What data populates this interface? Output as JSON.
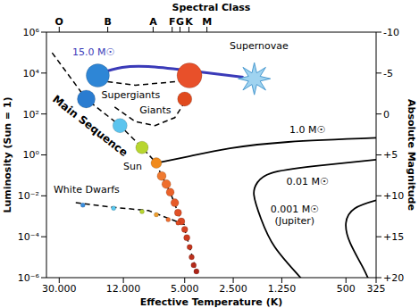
{
  "chart_data": {
    "type": "scatter",
    "x_label": "Effective Temperature (K)",
    "x2_label": "Spectral Class",
    "y_label": "Luminosity (Sun = 1)",
    "y2_label": "Absolute Magnitude",
    "log": true,
    "grid": false,
    "xlim": [
      36000,
      325
    ],
    "xticks": [
      {
        "value": 30000,
        "label": "30.000"
      },
      {
        "value": 12000,
        "label": "12.000"
      },
      {
        "value": 5000,
        "label": "5.000"
      },
      {
        "value": 2500,
        "label": "2.500"
      },
      {
        "value": 1250,
        "label": "1.250"
      },
      500,
      325
    ],
    "x2ticks": [
      {
        "value": 30000,
        "label": "O"
      },
      {
        "value": 15000,
        "label": "B"
      },
      {
        "value": 7850,
        "label": "A"
      },
      {
        "value": 5980,
        "label": "F"
      },
      {
        "value": 5350,
        "label": "G"
      },
      {
        "value": 4710,
        "label": "K"
      },
      {
        "value": 3640,
        "label": "M"
      }
    ],
    "ylim": [
      1e-06,
      1000000
    ],
    "yticks": [
      {
        "value": 1000000,
        "label": "10⁶"
      },
      {
        "value": 10000,
        "label": "10⁴"
      },
      {
        "value": 100,
        "label": "10²"
      },
      {
        "value": 1,
        "label": "10⁰"
      },
      {
        "value": 0.01,
        "label": "10⁻²"
      },
      {
        "value": 0.0001,
        "label": "10⁻⁴"
      },
      {
        "value": 1e-06,
        "label": "10⁻⁶"
      }
    ],
    "y2lim": [
      20,
      -10
    ],
    "y2ticks": [
      -10,
      -5,
      0,
      {
        "value": 5,
        "label": "+5"
      },
      {
        "value": 10,
        "label": "+10"
      },
      {
        "value": 15,
        "label": "+15"
      },
      {
        "value": 20,
        "label": "+20"
      }
    ],
    "series": [
      {
        "type": "line",
        "line_style": "dashed",
        "color": "#000000",
        "x": [
          33200,
          20400,
          12600,
          9200,
          7500,
          6950,
          6150,
          5500,
          5000,
          4660,
          4230
        ],
        "values": [
          98000,
          540,
          27,
          2.3,
          0.4,
          0.093,
          0.015,
          0.0015,
          0.00023,
          3.1e-05,
          2e-06
        ]
      },
      {
        "type": "line",
        "line_style": "dashed",
        "color": "#000000",
        "x": [
          13600,
          10100,
          7640,
          5760,
          4850
        ],
        "values": [
          218,
          42,
          27,
          66,
          540
        ]
      },
      {
        "type": "line",
        "line_style": "dashed",
        "color": "#000000",
        "x": [
          19400,
          10100,
          5240
        ],
        "values": [
          4800,
          2560,
          4000
        ]
      },
      {
        "type": "line",
        "line_style": "dashed",
        "color": "#000000",
        "x": [
          23700,
          13600,
          8400,
          5000
        ],
        "values": [
          0.0046,
          0.0027,
          0.0019,
          0.00039
        ]
      },
      {
        "type": "line",
        "line_style": "solid",
        "color": "#3a3ab8",
        "x": [
          17300,
          12200,
          8400,
          5000,
          2160
        ],
        "values": [
          9100,
          19000,
          21000,
          14000,
          6300
        ]
      },
      {
        "type": "line",
        "line_style": "solid",
        "color": "#000000",
        "x": [
          7500,
          4760,
          2620,
          1140,
          325
        ],
        "values": [
          0.4,
          0.83,
          2.1,
          4.3,
          6.8
        ]
      },
      {
        "type": "line",
        "line_style": "solid",
        "color": "#000000",
        "x": [
          325,
          791,
          1450,
          1770,
          1860,
          1680,
          1380,
          950
        ],
        "values": [
          0.58,
          0.28,
          0.13,
          0.045,
          0.011,
          0.00074,
          3.1e-05,
          9.5e-07
        ]
      },
      {
        "type": "line",
        "line_style": "solid",
        "color": "#000000",
        "x": [
          325,
          441,
          500,
          470,
          393,
          343
        ],
        "values": [
          0.006,
          0.0024,
          0.00047,
          4.8e-05,
          3.2e-06,
          3.2e-07
        ]
      },
      {
        "type": "scatter",
        "marker": "circle",
        "x": [
          17300,
          4670,
          20400,
          12600,
          9200,
          7500,
          5000,
          6950,
          6500,
          6150,
          5760,
          5500,
          5250,
          5000,
          4850,
          4660,
          4530,
          4400,
          4230,
          21400,
          13800,
          9200,
          7500,
          6330,
          5500
        ],
        "values": [
          7600,
          7600,
          540,
          27,
          2.3,
          0.4,
          540,
          0.093,
          0.037,
          0.015,
          0.0046,
          0.0015,
          0.00056,
          0.00023,
          9e-05,
          3.1e-05,
          1e-05,
          4.1e-06,
          2e-06,
          0.0035,
          0.0025,
          0.0017,
          0.0012,
          0.00068,
          0.00047
        ],
        "sizes": [
          13,
          14,
          10,
          8,
          7,
          6,
          8,
          5,
          5,
          4.5,
          4.5,
          4,
          4,
          3.5,
          3.5,
          3,
          3,
          3,
          3,
          2.5,
          2.5,
          2.5,
          2.5,
          2.5,
          2.5
        ],
        "colors": [
          "#2e86d6",
          "#e8502a",
          "#2a7cd0",
          "#5cc4ee",
          "#b8d630",
          "#f08a1c",
          "#e04a1e",
          "#f07a30",
          "#ee6e2c",
          "#ea622a",
          "#e65a28",
          "#e05026",
          "#da4824",
          "#d44222",
          "#cc3c20",
          "#c4361e",
          "#bc301c",
          "#b42a1a",
          "#ac2418",
          "#3a8fe0",
          "#58c8f0",
          "#b8d630",
          "#f0a030",
          "#f07030",
          "#e04a20"
        ]
      },
      {
        "type": "scatter",
        "marker": "star",
        "color": "#9fd3f0",
        "x": [
          1850
        ],
        "values": [
          5300
        ]
      }
    ],
    "annotations": [
      {
        "text": "Main Sequence",
        "x": 19300,
        "y": 26
      },
      {
        "text": "Supergiants",
        "x": 10800,
        "y": 800
      },
      {
        "text": "15.0 M☉",
        "x": 18400,
        "y": 100000,
        "color": "#3a3ab8"
      },
      {
        "text": "Supernovae",
        "x": 1730,
        "y": 220000
      },
      {
        "text": "Giants",
        "x": 7600,
        "y": 150
      },
      {
        "text": "Sun",
        "x": 10500,
        "y": 0.28
      },
      {
        "text": "White Dwarfs",
        "x": 20300,
        "y": 0.02
      },
      {
        "text": "1.0 M☉",
        "x": 867,
        "y": 16
      },
      {
        "text": "0.01 M☉",
        "x": 867,
        "y": 0.05
      },
      {
        "text": "0.001 M☉",
        "x": 1040,
        "y": 0.0022
      },
      {
        "text": "(Jupiter)",
        "x": 1040,
        "y": 0.00062
      }
    ]
  }
}
